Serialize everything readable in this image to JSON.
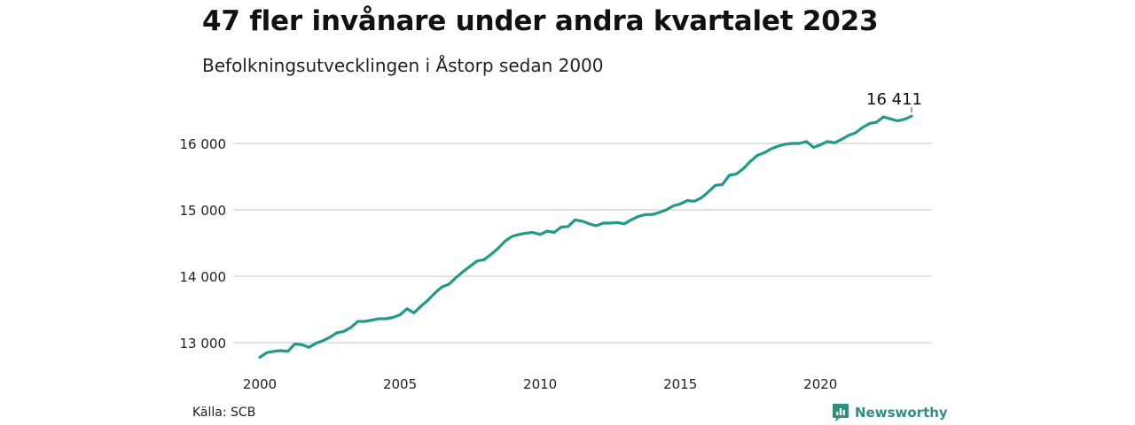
{
  "title": "47 fler invånare under andra kvartalet 2023",
  "subtitle": "Befolkningsutvecklingen i Åstorp sedan 2000",
  "source": "Källa: SCB",
  "brand": "Newsworthy",
  "colors": {
    "line": "#22998a",
    "grid": "#d9d9d9",
    "brand": "#2f8f80"
  },
  "chart_data": {
    "type": "line",
    "title": "47 fler invånare under andra kvartalet 2023",
    "subtitle": "Befolkningsutvecklingen i Åstorp sedan 2000",
    "xlabel": "",
    "ylabel": "",
    "xlim": [
      2000,
      2024
    ],
    "ylim": [
      12800,
      16400
    ],
    "x_ticks": [
      2000,
      2005,
      2010,
      2015,
      2020
    ],
    "x_tick_labels": [
      "2000",
      "2005",
      "2010",
      "2015",
      "2020"
    ],
    "y_ticks": [
      13000,
      14000,
      15000,
      16000
    ],
    "y_tick_labels": [
      "13 000",
      "14 000",
      "15 000",
      "16 000"
    ],
    "grid": "horizontal",
    "legend": "none",
    "last_label": "16 411",
    "series": [
      {
        "values": [
          [
            2000.0,
            12780
          ],
          [
            2000.25,
            12850
          ],
          [
            2000.5,
            12870
          ],
          [
            2000.75,
            12880
          ],
          [
            2001.0,
            12870
          ],
          [
            2001.25,
            12980
          ],
          [
            2001.5,
            12970
          ],
          [
            2001.75,
            12930
          ],
          [
            2002.0,
            12990
          ],
          [
            2002.25,
            13030
          ],
          [
            2002.5,
            13080
          ],
          [
            2002.75,
            13150
          ],
          [
            2003.0,
            13170
          ],
          [
            2003.25,
            13230
          ],
          [
            2003.5,
            13320
          ],
          [
            2003.75,
            13320
          ],
          [
            2004.0,
            13340
          ],
          [
            2004.25,
            13360
          ],
          [
            2004.5,
            13360
          ],
          [
            2004.75,
            13380
          ],
          [
            2005.0,
            13420
          ],
          [
            2005.25,
            13510
          ],
          [
            2005.5,
            13450
          ],
          [
            2005.75,
            13550
          ],
          [
            2006.0,
            13640
          ],
          [
            2006.25,
            13750
          ],
          [
            2006.5,
            13840
          ],
          [
            2006.75,
            13880
          ],
          [
            2007.0,
            13980
          ],
          [
            2007.25,
            14070
          ],
          [
            2007.5,
            14150
          ],
          [
            2007.75,
            14230
          ],
          [
            2008.0,
            14250
          ],
          [
            2008.25,
            14330
          ],
          [
            2008.5,
            14420
          ],
          [
            2008.75,
            14530
          ],
          [
            2009.0,
            14600
          ],
          [
            2009.25,
            14630
          ],
          [
            2009.5,
            14650
          ],
          [
            2009.75,
            14660
          ],
          [
            2010.0,
            14630
          ],
          [
            2010.25,
            14680
          ],
          [
            2010.5,
            14660
          ],
          [
            2010.75,
            14740
          ],
          [
            2011.0,
            14750
          ],
          [
            2011.25,
            14850
          ],
          [
            2011.5,
            14830
          ],
          [
            2011.75,
            14790
          ],
          [
            2012.0,
            14760
          ],
          [
            2012.25,
            14800
          ],
          [
            2012.5,
            14800
          ],
          [
            2012.75,
            14810
          ],
          [
            2013.0,
            14790
          ],
          [
            2013.25,
            14850
          ],
          [
            2013.5,
            14900
          ],
          [
            2013.75,
            14930
          ],
          [
            2014.0,
            14930
          ],
          [
            2014.25,
            14960
          ],
          [
            2014.5,
            15000
          ],
          [
            2014.75,
            15060
          ],
          [
            2015.0,
            15090
          ],
          [
            2015.25,
            15140
          ],
          [
            2015.5,
            15130
          ],
          [
            2015.75,
            15180
          ],
          [
            2016.0,
            15270
          ],
          [
            2016.25,
            15370
          ],
          [
            2016.5,
            15380
          ],
          [
            2016.75,
            15520
          ],
          [
            2017.0,
            15540
          ],
          [
            2017.25,
            15620
          ],
          [
            2017.5,
            15730
          ],
          [
            2017.75,
            15820
          ],
          [
            2018.0,
            15860
          ],
          [
            2018.25,
            15920
          ],
          [
            2018.5,
            15960
          ],
          [
            2018.75,
            15990
          ],
          [
            2019.0,
            16000
          ],
          [
            2019.25,
            16000
          ],
          [
            2019.5,
            16030
          ],
          [
            2019.75,
            15940
          ],
          [
            2020.0,
            15980
          ],
          [
            2020.25,
            16030
          ],
          [
            2020.5,
            16010
          ],
          [
            2020.75,
            16060
          ],
          [
            2021.0,
            16120
          ],
          [
            2021.25,
            16160
          ],
          [
            2021.5,
            16240
          ],
          [
            2021.75,
            16300
          ],
          [
            2022.0,
            16320
          ],
          [
            2022.25,
            16400
          ],
          [
            2022.5,
            16370
          ],
          [
            2022.75,
            16340
          ],
          [
            2023.0,
            16364
          ],
          [
            2023.25,
            16411
          ]
        ]
      }
    ]
  }
}
